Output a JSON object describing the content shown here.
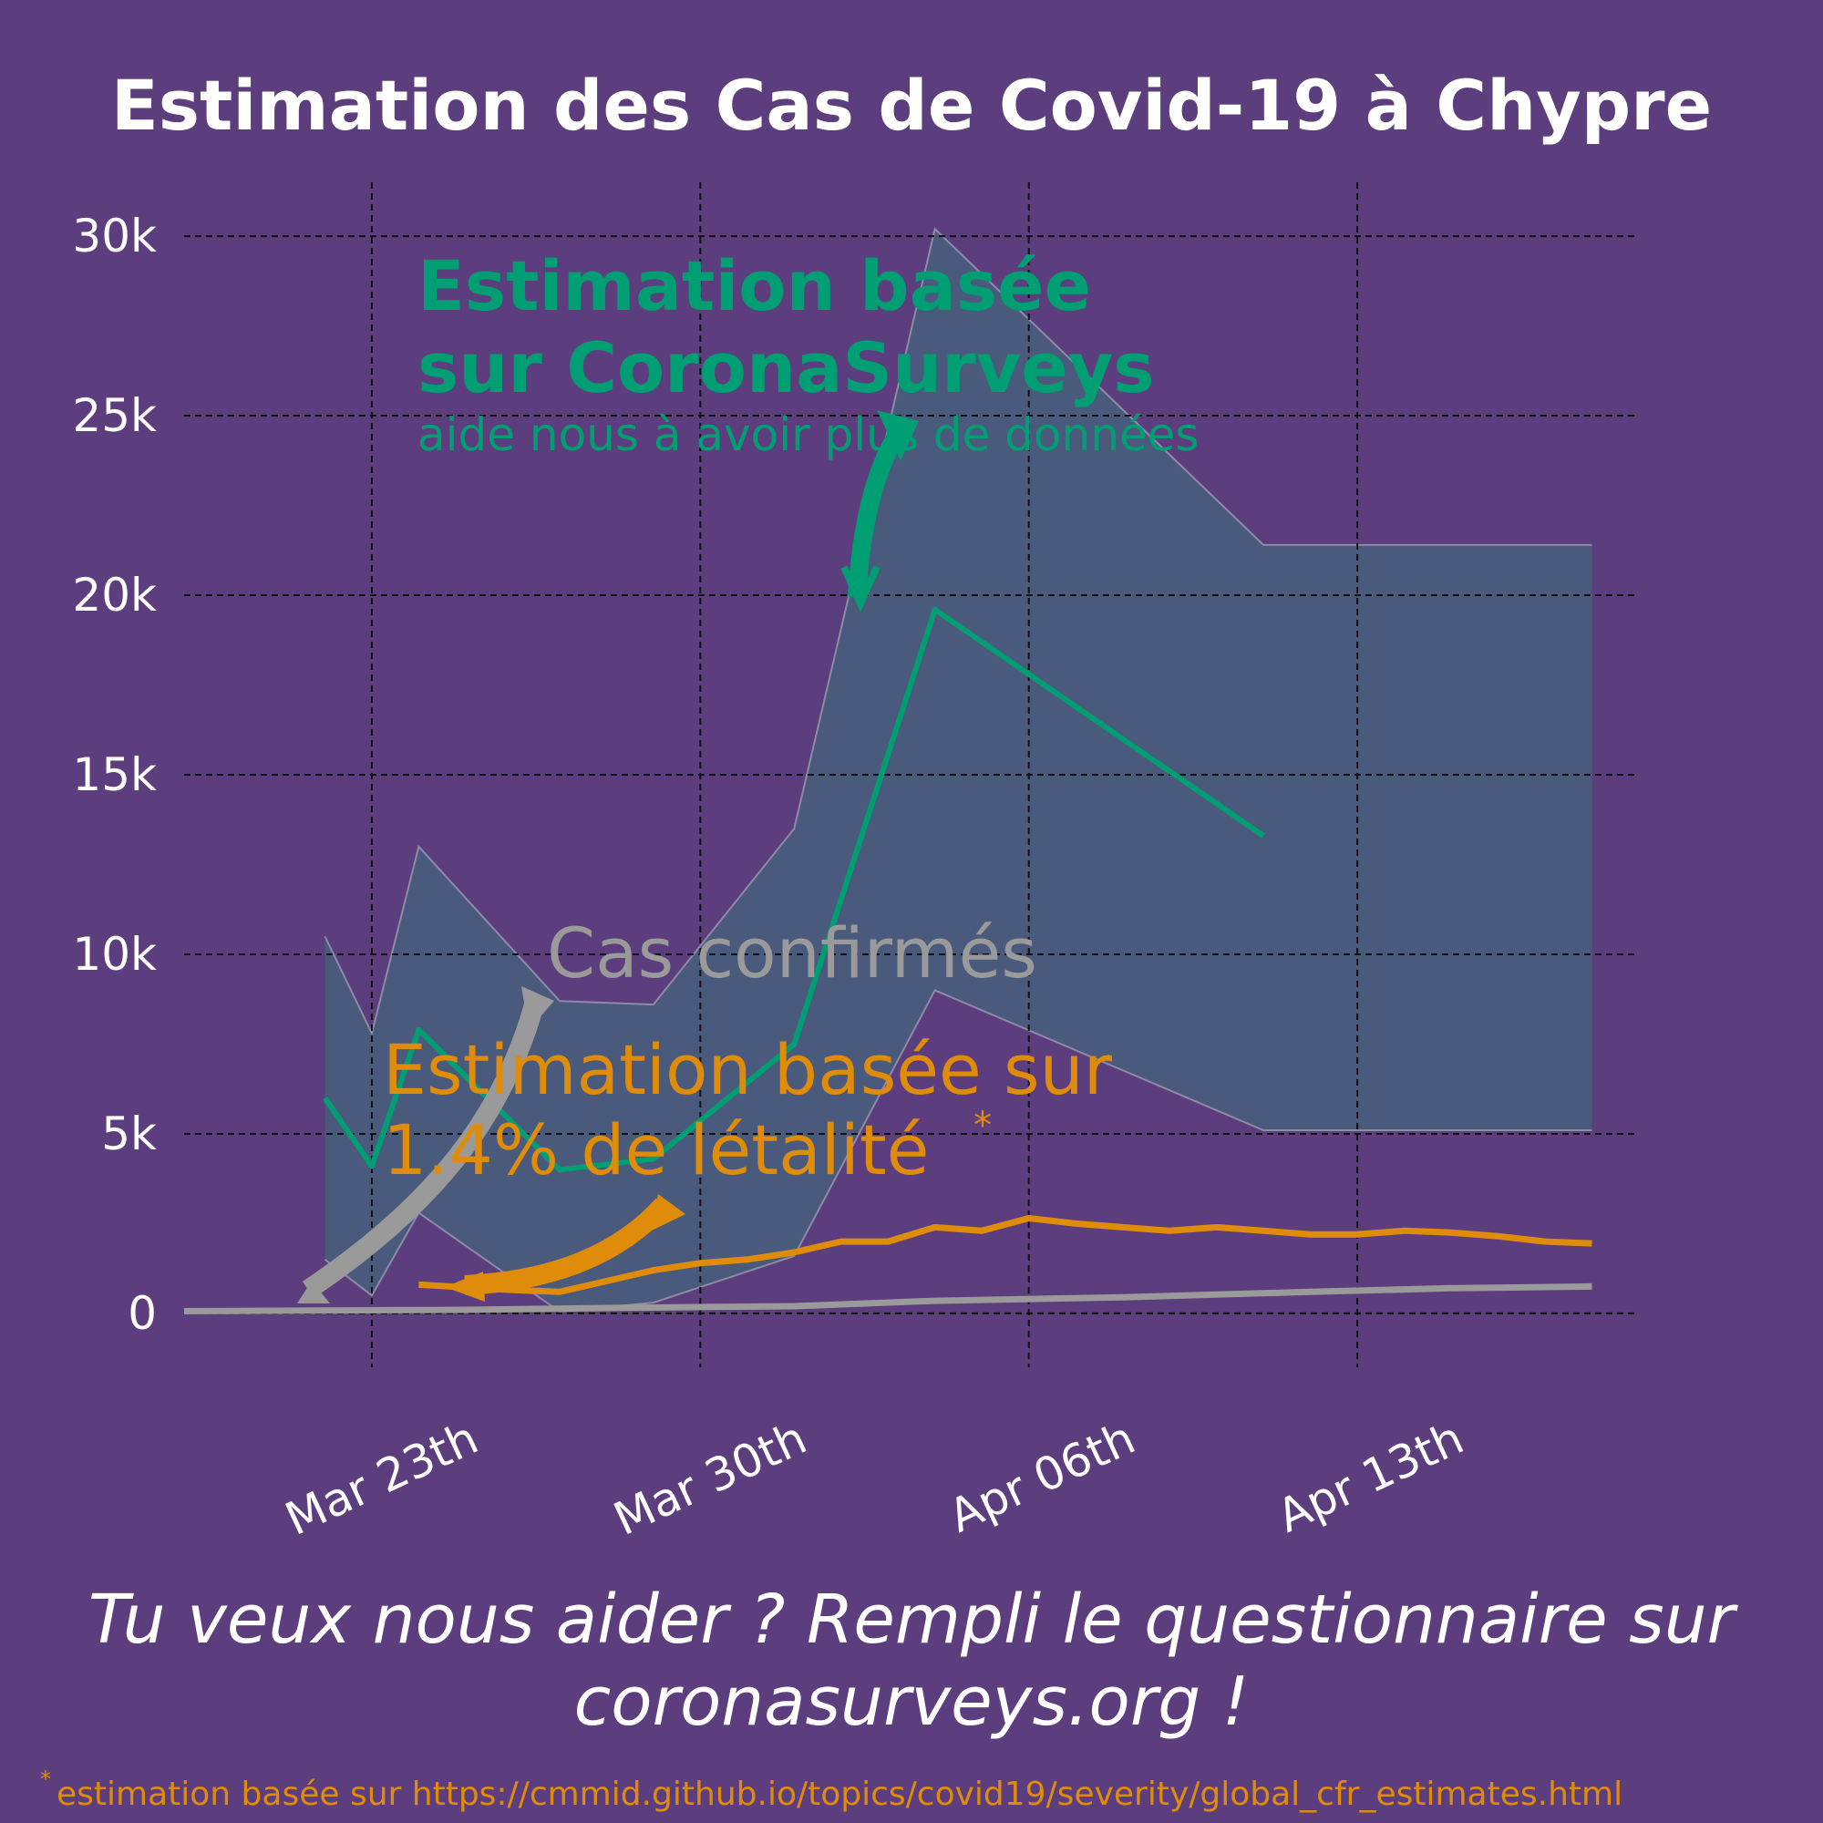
{
  "colors": {
    "background": "#5c3e7e",
    "band_fill": "#495a7c",
    "band_edge": "#8f8aa5",
    "green": "#009e73",
    "orange": "#e08c0b",
    "grey": "#9a9a9a",
    "text": "#ffffff",
    "grid": "#111111"
  },
  "chart_data": {
    "type": "line",
    "title": "Estimation des Cas de Covid-19 à Chypre",
    "xlabel": "",
    "ylabel": "",
    "ylim": [
      -1500,
      31500
    ],
    "xlim": [
      "2020-03-19",
      "2020-04-19"
    ],
    "grid": true,
    "y_ticks": [
      0,
      5000,
      10000,
      15000,
      20000,
      25000,
      30000
    ],
    "y_tick_labels": [
      "0",
      "5k",
      "10k",
      "15k",
      "20k",
      "25k",
      "30k"
    ],
    "x_ticks": [
      "2020-03-23",
      "2020-03-30",
      "2020-04-06",
      "2020-04-13"
    ],
    "x_tick_labels": [
      "Mar 23th",
      "Mar 30th",
      "Apr 06th",
      "Apr 13th"
    ],
    "series": [
      {
        "key": "survey",
        "color": "#009e73",
        "x": [
          "2020-03-22",
          "2020-03-23",
          "2020-03-24",
          "2020-03-27",
          "2020-03-29",
          "2020-04-01",
          "2020-04-04",
          "2020-04-11"
        ],
        "values": [
          6000,
          4100,
          7900,
          4000,
          4300,
          7500,
          19600,
          13300
        ]
      },
      {
        "key": "survey_band",
        "color": "#495a7c",
        "x": [
          "2020-03-22",
          "2020-03-23",
          "2020-03-24",
          "2020-03-27",
          "2020-03-29",
          "2020-04-01",
          "2020-04-04",
          "2020-04-11",
          "2020-04-18"
        ],
        "upper": [
          10500,
          7800,
          13000,
          8700,
          8600,
          13500,
          30200,
          21400,
          21400
        ],
        "lower": [
          1500,
          500,
          2800,
          50,
          300,
          1600,
          9000,
          5100,
          5100
        ]
      },
      {
        "key": "cfr_estimate",
        "color": "#e08c0b",
        "x": [
          "2020-03-24",
          "2020-03-26",
          "2020-03-27",
          "2020-03-28",
          "2020-03-29",
          "2020-03-30",
          "2020-03-31",
          "2020-04-01",
          "2020-04-02",
          "2020-04-03",
          "2020-04-04",
          "2020-04-05",
          "2020-04-06",
          "2020-04-07",
          "2020-04-08",
          "2020-04-09",
          "2020-04-10",
          "2020-04-11",
          "2020-04-12",
          "2020-04-13",
          "2020-04-14",
          "2020-04-15",
          "2020-04-16",
          "2020-04-17",
          "2020-04-18"
        ],
        "values": [
          800,
          650,
          600,
          900,
          1200,
          1400,
          1500,
          1700,
          2000,
          2000,
          2400,
          2300,
          2650,
          2500,
          2400,
          2300,
          2400,
          2300,
          2200,
          2200,
          2300,
          2250,
          2150,
          2000,
          1950
        ]
      },
      {
        "key": "confirmed",
        "color": "#9a9a9a",
        "x": [
          "2020-03-19",
          "2020-03-22",
          "2020-03-25",
          "2020-03-28",
          "2020-04-01",
          "2020-04-04",
          "2020-04-08",
          "2020-04-12",
          "2020-04-15",
          "2020-04-18"
        ],
        "values": [
          60,
          80,
          100,
          150,
          200,
          350,
          450,
          600,
          700,
          750
        ]
      }
    ]
  },
  "annotations": {
    "green_line1": "Estimation basée",
    "green_line2": "sur CoronaSurveys",
    "green_sub": "aide nous à avoir plus de données",
    "grey": "Cas confirmés",
    "orange_line1": "Estimation basée sur",
    "orange_line2": "1.4% de létalité",
    "orange_mark": "*"
  },
  "footer": {
    "cta_line1": "Tu veux nous aider ? Rempli le questionnaire sur",
    "cta_line2": "coronasurveys.org !",
    "footnote_mark": "*",
    "footnote": "estimation basée sur https://cmmid.github.io/topics/covid19/severity/global_cfr_estimates.html"
  },
  "icons": {
    "green_arrow": "curved-arrow-down-icon",
    "grey_arrow": "curved-arrow-down-left-icon",
    "orange_arrow": "curved-arrow-left-icon"
  }
}
